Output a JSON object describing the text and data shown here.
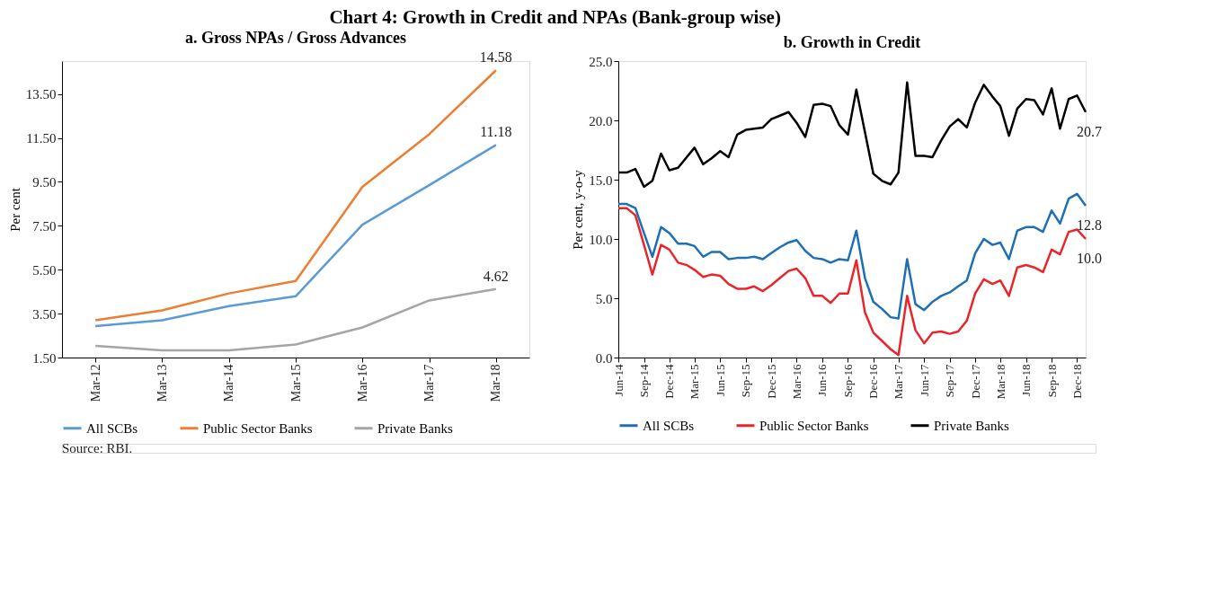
{
  "chart_data": [
    {
      "type": "line",
      "title": "a. Gross NPAs / Gross Advances",
      "ylabel": "Per cent",
      "annotations": [
        "Chart 4: Growth in Credit and NPAs (Bank-group wise)"
      ],
      "categories": [
        "Mar-12",
        "Mar-13",
        "Mar-14",
        "Mar-15",
        "Mar-16",
        "Mar-17",
        "Mar-18"
      ],
      "series": [
        {
          "name": "All SCBs",
          "color": "#5b9bd5",
          "values": [
            2.93,
            3.2,
            3.84,
            4.29,
            7.55,
            9.35,
            11.18
          ],
          "value_labels": [
            null,
            null,
            null,
            null,
            null,
            null,
            "11.18"
          ]
        },
        {
          "name": "Public Sector Banks",
          "color": "#ed7d31",
          "values": [
            3.2,
            3.65,
            4.42,
            4.99,
            9.27,
            11.67,
            14.58
          ],
          "value_labels": [
            null,
            null,
            null,
            null,
            null,
            null,
            "14.58"
          ]
        },
        {
          "name": "Private  Banks",
          "color": "#a5a5a5",
          "values": [
            2.03,
            1.83,
            1.83,
            2.09,
            2.87,
            4.1,
            4.62
          ],
          "value_labels": [
            null,
            null,
            null,
            null,
            null,
            null,
            "4.62"
          ]
        }
      ],
      "ylim": [
        1.5,
        15.0
      ],
      "yticks": [
        {
          "value": 1.5,
          "label": "1.50"
        },
        {
          "value": 3.5,
          "label": "3.50"
        },
        {
          "value": 5.5,
          "label": "5.50"
        },
        {
          "value": 7.5,
          "label": "7.50"
        },
        {
          "value": 9.5,
          "label": "9.50"
        },
        {
          "value": 11.5,
          "label": "11.50"
        },
        {
          "value": 13.5,
          "label": "13.50"
        }
      ],
      "grid": false,
      "legend": "bottom"
    },
    {
      "type": "line",
      "title": "b. Growth in Credit",
      "ylabel": "Per cent, y-o-y",
      "annotations": [
        "Source: RBI."
      ],
      "x": [
        "2014-06",
        "2014-07",
        "2014-08",
        "2014-09",
        "2014-10",
        "2014-11",
        "2014-12",
        "2015-01",
        "2015-02",
        "2015-03",
        "2015-04",
        "2015-05",
        "2015-06",
        "2015-07",
        "2015-08",
        "2015-09",
        "2015-10",
        "2015-11",
        "2015-12",
        "2016-01",
        "2016-02",
        "2016-03",
        "2016-04",
        "2016-05",
        "2016-06",
        "2016-07",
        "2016-08",
        "2016-09",
        "2016-10",
        "2016-11",
        "2016-12",
        "2017-01",
        "2017-02",
        "2017-03",
        "2017-04",
        "2017-05",
        "2017-06",
        "2017-07",
        "2017-08",
        "2017-09",
        "2017-10",
        "2017-11",
        "2017-12",
        "2018-01",
        "2018-02",
        "2018-03",
        "2018-04",
        "2018-05",
        "2018-06",
        "2018-07",
        "2018-08",
        "2018-09",
        "2018-10",
        "2018-11",
        "2018-12",
        "2019-01"
      ],
      "series": [
        {
          "name": "All SCBs",
          "color": "#1f6fb5",
          "values": [
            12.95,
            12.95,
            12.6,
            10.5,
            8.5,
            11.0,
            10.5,
            9.6,
            9.6,
            9.4,
            8.5,
            8.9,
            8.9,
            8.3,
            8.4,
            8.4,
            8.5,
            8.3,
            8.8,
            9.3,
            9.7,
            9.9,
            9.0,
            8.4,
            8.3,
            8.0,
            8.3,
            8.2,
            10.7,
            6.7,
            4.7,
            4.1,
            3.4,
            3.3,
            8.3,
            4.5,
            4.0,
            4.7,
            5.2,
            5.5,
            6.0,
            6.5,
            8.8,
            10.0,
            9.5,
            9.7,
            8.3,
            10.7,
            11.0,
            11.0,
            10.6,
            12.4,
            11.3,
            13.4,
            13.8,
            12.8
          ],
          "value_labels": [
            null,
            null,
            null,
            null,
            null,
            null,
            null,
            null,
            null,
            null,
            null,
            null,
            null,
            null,
            null,
            null,
            null,
            null,
            null,
            null,
            null,
            null,
            null,
            null,
            null,
            null,
            null,
            null,
            null,
            null,
            null,
            null,
            null,
            null,
            null,
            null,
            null,
            null,
            null,
            null,
            null,
            null,
            null,
            null,
            null,
            null,
            null,
            null,
            null,
            null,
            null,
            null,
            null,
            null,
            null,
            "12.8"
          ]
        },
        {
          "name": "Public Sector Banks",
          "color": "#e8262a",
          "values": [
            12.6,
            12.6,
            12.0,
            9.5,
            7.0,
            9.5,
            9.1,
            8.0,
            7.8,
            7.4,
            6.8,
            7.0,
            6.9,
            6.2,
            5.8,
            5.8,
            6.0,
            5.6,
            6.1,
            6.7,
            7.3,
            7.5,
            6.7,
            5.2,
            5.2,
            4.6,
            5.4,
            5.4,
            8.2,
            3.8,
            2.1,
            1.4,
            0.7,
            0.2,
            5.2,
            2.3,
            1.2,
            2.1,
            2.2,
            2.0,
            2.2,
            3.1,
            5.4,
            6.6,
            6.2,
            6.5,
            5.2,
            7.6,
            7.8,
            7.6,
            7.2,
            9.1,
            8.7,
            10.6,
            10.8,
            10.0
          ],
          "value_labels": [
            null,
            null,
            null,
            null,
            null,
            null,
            null,
            null,
            null,
            null,
            null,
            null,
            null,
            null,
            null,
            null,
            null,
            null,
            null,
            null,
            null,
            null,
            null,
            null,
            null,
            null,
            null,
            null,
            null,
            null,
            null,
            null,
            null,
            null,
            null,
            null,
            null,
            null,
            null,
            null,
            null,
            null,
            null,
            null,
            null,
            null,
            null,
            null,
            null,
            null,
            null,
            null,
            null,
            null,
            null,
            "10.0"
          ]
        },
        {
          "name": "Private Banks",
          "color": "#000000",
          "values": [
            15.6,
            15.6,
            15.9,
            14.4,
            14.9,
            17.2,
            15.8,
            16.0,
            16.9,
            17.7,
            16.3,
            16.8,
            17.4,
            16.9,
            18.8,
            19.2,
            19.3,
            19.4,
            20.1,
            20.4,
            20.7,
            19.8,
            18.6,
            21.3,
            21.4,
            21.2,
            19.6,
            18.8,
            22.6,
            19.0,
            15.5,
            14.9,
            14.6,
            15.6,
            23.2,
            17.0,
            17.0,
            16.9,
            18.3,
            19.5,
            20.1,
            19.4,
            21.5,
            23.0,
            22.0,
            21.2,
            18.7,
            21.0,
            21.8,
            21.7,
            20.5,
            22.7,
            19.3,
            21.8,
            22.1,
            20.7
          ],
          "value_labels": [
            null,
            null,
            null,
            null,
            null,
            null,
            null,
            null,
            null,
            null,
            null,
            null,
            null,
            null,
            null,
            null,
            null,
            null,
            null,
            null,
            null,
            null,
            null,
            null,
            null,
            null,
            null,
            null,
            null,
            null,
            null,
            null,
            null,
            null,
            null,
            null,
            null,
            null,
            null,
            null,
            null,
            null,
            null,
            null,
            null,
            null,
            null,
            null,
            null,
            null,
            null,
            null,
            null,
            null,
            null,
            "20.7"
          ]
        }
      ],
      "xlim": [
        "2014-06",
        "2019-01"
      ],
      "xticks": [
        {
          "value": "2014-06",
          "label": "Jun-14"
        },
        {
          "value": "2014-09",
          "label": "Sep-14"
        },
        {
          "value": "2014-12",
          "label": "Dec-14"
        },
        {
          "value": "2015-03",
          "label": "Mar-15"
        },
        {
          "value": "2015-06",
          "label": "Jun-15"
        },
        {
          "value": "2015-09",
          "label": "Sep-15"
        },
        {
          "value": "2015-12",
          "label": "Dec-15"
        },
        {
          "value": "2016-03",
          "label": "Mar-16"
        },
        {
          "value": "2016-06",
          "label": "Jun-16"
        },
        {
          "value": "2016-09",
          "label": "Sep-16"
        },
        {
          "value": "2016-12",
          "label": "Dec-16"
        },
        {
          "value": "2017-03",
          "label": "Mar-17"
        },
        {
          "value": "2017-06",
          "label": "Jun-17"
        },
        {
          "value": "2017-09",
          "label": "Sep-17"
        },
        {
          "value": "2017-12",
          "label": "Dec-17"
        },
        {
          "value": "2018-03",
          "label": "Mar-18"
        },
        {
          "value": "2018-06",
          "label": "Jun-18"
        },
        {
          "value": "2018-09",
          "label": "Sep-18"
        },
        {
          "value": "2018-12",
          "label": "Dec-18"
        }
      ],
      "ylim": [
        0,
        25
      ],
      "yticks": [
        {
          "value": 0,
          "label": "0.0"
        },
        {
          "value": 5,
          "label": "5.0"
        },
        {
          "value": 10,
          "label": "10.0"
        },
        {
          "value": 15,
          "label": "15.0"
        },
        {
          "value": 20,
          "label": "20.0"
        },
        {
          "value": 25,
          "label": "25.0"
        }
      ],
      "grid": false,
      "legend": "bottom"
    }
  ]
}
